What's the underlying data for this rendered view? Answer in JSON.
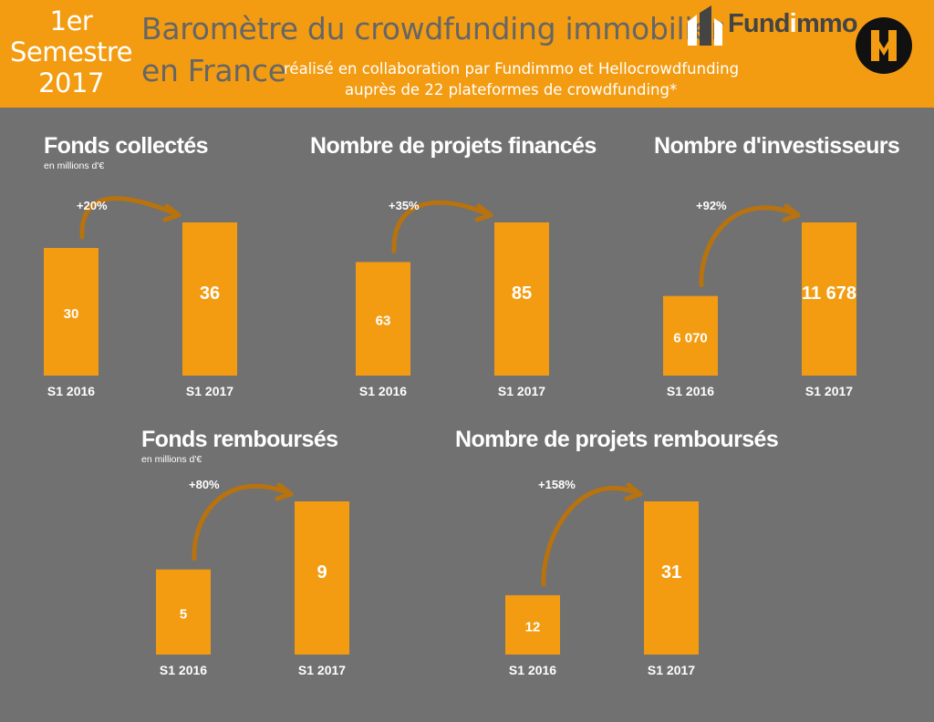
{
  "header": {
    "period_lines": [
      "1er",
      "Semestre",
      "2017"
    ],
    "title_line1": "Baromètre du crowdfunding immobilier",
    "title_line2": "en France",
    "subtitle_line1": "réalisé en collaboration par Fundimmo et Hellocrowdfunding",
    "subtitle_line2": "auprès de 22 plateformes de crowdfunding*",
    "logo_fundimmo": "Fundimmo",
    "logo_hellocrowdfunding_letter": "H",
    "colors": {
      "banner": "#f39c12",
      "background": "#717171",
      "title_text": "#666666"
    }
  },
  "chart_data": [
    {
      "type": "bar",
      "title": "Fonds collectés",
      "unit_note": "en millions d'€",
      "categories": [
        "S1 2016",
        "S1 2017"
      ],
      "values": [
        30,
        36
      ],
      "value_labels": [
        "30",
        "36"
      ],
      "growth": "+20%",
      "color": "#f39c12"
    },
    {
      "type": "bar",
      "title": "Nombre de projets financés",
      "unit_note": "",
      "categories": [
        "S1 2016",
        "S1 2017"
      ],
      "values": [
        63,
        85
      ],
      "value_labels": [
        "63",
        "85"
      ],
      "growth": "+35%",
      "color": "#f39c12"
    },
    {
      "type": "bar",
      "title": "Nombre d'investisseurs",
      "unit_note": "",
      "categories": [
        "S1 2016",
        "S1 2017"
      ],
      "values": [
        6070,
        11678
      ],
      "value_labels": [
        "6 070",
        "11 678"
      ],
      "growth": "+92%",
      "color": "#f39c12"
    },
    {
      "type": "bar",
      "title": "Fonds remboursés",
      "unit_note": "en millions d'€",
      "categories": [
        "S1 2016",
        "S1 2017"
      ],
      "values": [
        5,
        9
      ],
      "value_labels": [
        "5",
        "9"
      ],
      "growth": "+80%",
      "color": "#f39c12"
    },
    {
      "type": "bar",
      "title": "Nombre de projets remboursés",
      "unit_note": "",
      "categories": [
        "S1 2016",
        "S1 2017"
      ],
      "values": [
        12,
        31
      ],
      "value_labels": [
        "12",
        "31"
      ],
      "growth": "+158%",
      "color": "#f39c12"
    }
  ]
}
